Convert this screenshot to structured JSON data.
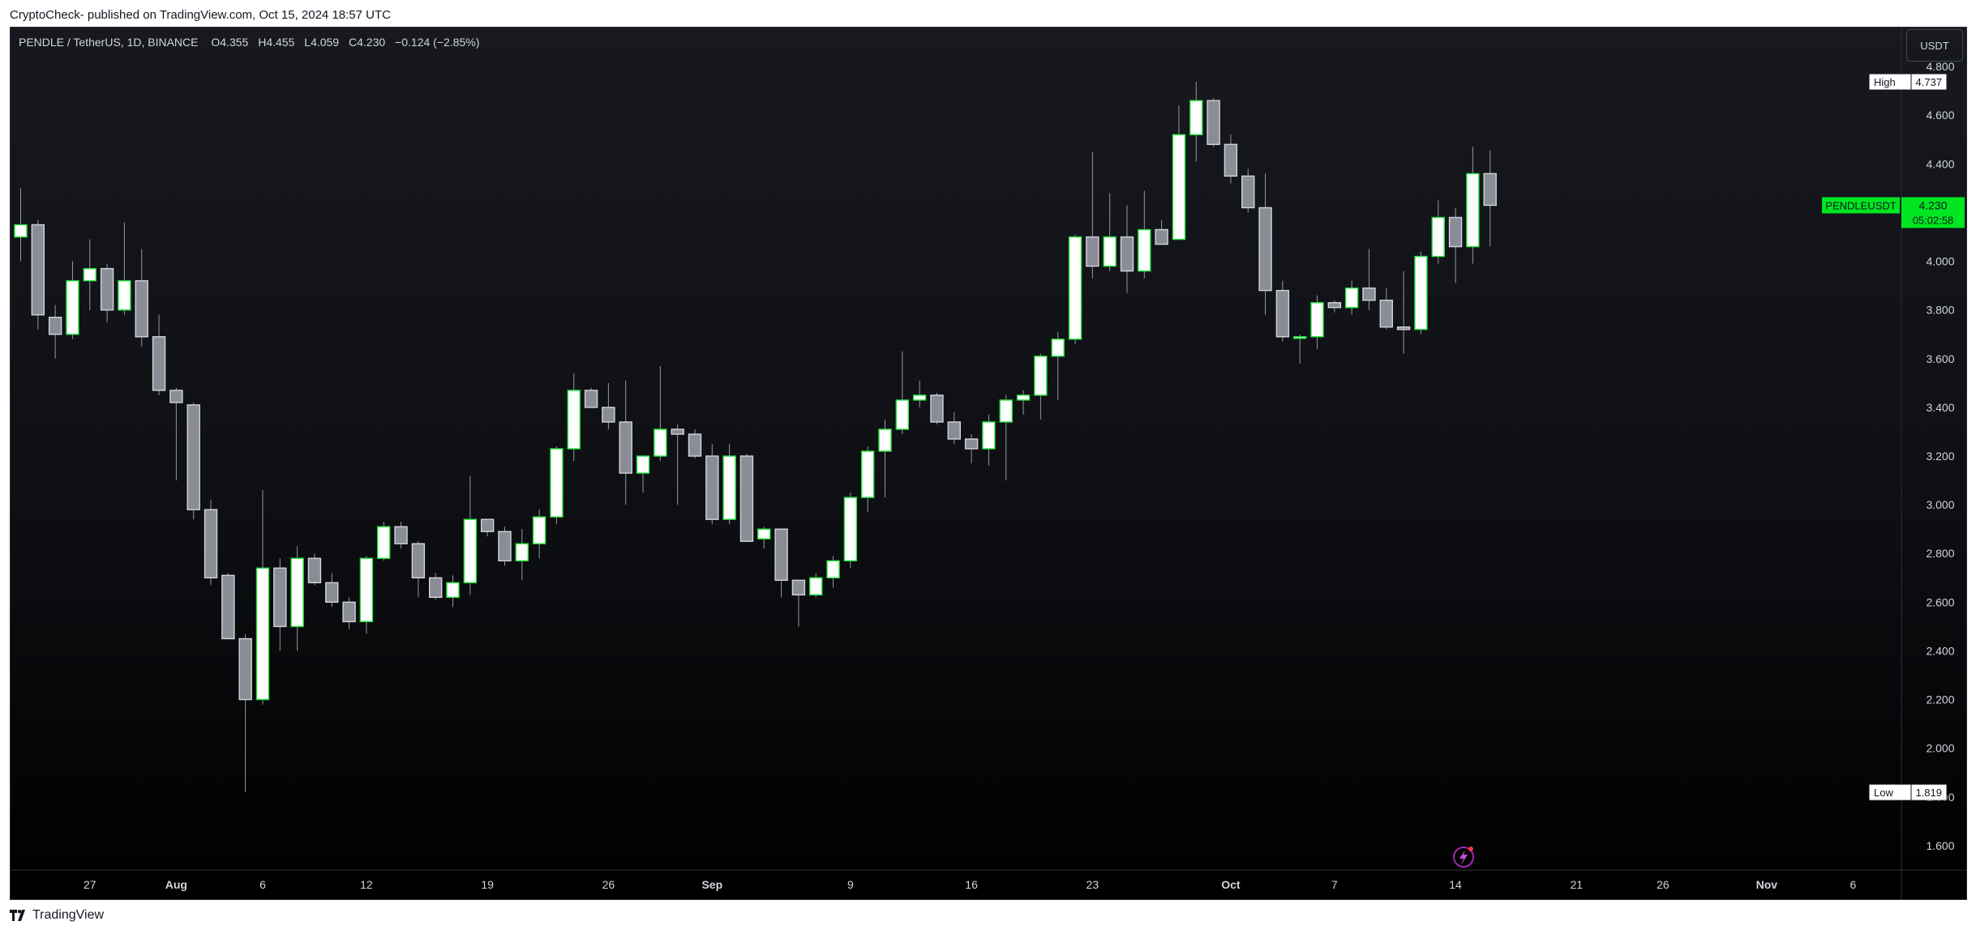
{
  "caption": "CryptoCheck- published on TradingView.com, Oct 15, 2024 18:57 UTC",
  "legend": {
    "symbol": "PENDLE / TetherUS, 1D, BINANCE",
    "open_label": "O",
    "open": "4.355",
    "high_label": "H",
    "high": "4.455",
    "low_label": "L",
    "low": "4.059",
    "close_label": "C",
    "close": "4.230",
    "change": "−0.124 (−2.85%)"
  },
  "currency": "USDT",
  "footer": {
    "brand": "TradingView"
  },
  "colors": {
    "up_border": "#22e53a",
    "up_body": "#ffffff",
    "down_border": "#d1d4dc",
    "down_body": "#8a8d96",
    "wick": "#9598a1",
    "axis_text": "#d1d4dc",
    "live_label": "#00e621"
  },
  "chart_data": {
    "type": "candlestick",
    "symbol": "PENDLEUSDT",
    "interval": "1D",
    "ylim": [
      1.5,
      4.96
    ],
    "y_ticks": [
      "4.800",
      "4.600",
      "4.400",
      "4.200",
      "4.000",
      "3.800",
      "3.600",
      "3.400",
      "3.200",
      "3.000",
      "2.800",
      "2.600",
      "2.400",
      "2.200",
      "2.000",
      "1.800",
      "1.600"
    ],
    "x_ticks": [
      {
        "label": "27",
        "index": 4
      },
      {
        "label": "Aug",
        "index": 9
      },
      {
        "label": "6",
        "index": 14
      },
      {
        "label": "12",
        "index": 20
      },
      {
        "label": "19",
        "index": 27
      },
      {
        "label": "26",
        "index": 34
      },
      {
        "label": "Sep",
        "index": 40
      },
      {
        "label": "9",
        "index": 48
      },
      {
        "label": "16",
        "index": 55
      },
      {
        "label": "23",
        "index": 62
      },
      {
        "label": "Oct",
        "index": 70
      },
      {
        "label": "7",
        "index": 76
      },
      {
        "label": "14",
        "index": 83
      },
      {
        "label": "21",
        "index": 90
      },
      {
        "label": "26",
        "index": 95
      },
      {
        "label": "Nov",
        "index": 101
      },
      {
        "label": "6",
        "index": 106
      }
    ],
    "high_marker": {
      "label": "High",
      "value": "4.737"
    },
    "low_marker": {
      "label": "Low",
      "value": "1.819"
    },
    "last_price": {
      "label": "PENDLEUSDT",
      "value": "4.230",
      "countdown": "05:02:58",
      "y": 4.23
    },
    "candles": [
      {
        "o": 4.1,
        "h": 4.3,
        "l": 4.0,
        "c": 4.15
      },
      {
        "o": 4.15,
        "h": 4.17,
        "l": 3.72,
        "c": 3.78
      },
      {
        "o": 3.77,
        "h": 3.82,
        "l": 3.6,
        "c": 3.7
      },
      {
        "o": 3.7,
        "h": 4.0,
        "l": 3.68,
        "c": 3.92
      },
      {
        "o": 3.92,
        "h": 4.09,
        "l": 3.8,
        "c": 3.97
      },
      {
        "o": 3.97,
        "h": 3.99,
        "l": 3.75,
        "c": 3.8
      },
      {
        "o": 3.8,
        "h": 4.16,
        "l": 3.78,
        "c": 3.92
      },
      {
        "o": 3.92,
        "h": 4.05,
        "l": 3.65,
        "c": 3.69
      },
      {
        "o": 3.69,
        "h": 3.78,
        "l": 3.45,
        "c": 3.47
      },
      {
        "o": 3.47,
        "h": 3.48,
        "l": 3.1,
        "c": 3.42
      },
      {
        "o": 3.41,
        "h": 3.42,
        "l": 2.94,
        "c": 2.98
      },
      {
        "o": 2.98,
        "h": 3.02,
        "l": 2.67,
        "c": 2.7
      },
      {
        "o": 2.71,
        "h": 2.72,
        "l": 2.45,
        "c": 2.45
      },
      {
        "o": 2.45,
        "h": 2.47,
        "l": 1.82,
        "c": 2.2
      },
      {
        "o": 2.2,
        "h": 3.06,
        "l": 2.18,
        "c": 2.74
      },
      {
        "o": 2.74,
        "h": 2.78,
        "l": 2.4,
        "c": 2.5
      },
      {
        "o": 2.5,
        "h": 2.83,
        "l": 2.4,
        "c": 2.78
      },
      {
        "o": 2.78,
        "h": 2.8,
        "l": 2.67,
        "c": 2.68
      },
      {
        "o": 2.68,
        "h": 2.72,
        "l": 2.58,
        "c": 2.6
      },
      {
        "o": 2.6,
        "h": 2.62,
        "l": 2.49,
        "c": 2.52
      },
      {
        "o": 2.52,
        "h": 2.79,
        "l": 2.47,
        "c": 2.78
      },
      {
        "o": 2.78,
        "h": 2.93,
        "l": 2.77,
        "c": 2.91
      },
      {
        "o": 2.91,
        "h": 2.93,
        "l": 2.82,
        "c": 2.84
      },
      {
        "o": 2.84,
        "h": 2.85,
        "l": 2.62,
        "c": 2.7
      },
      {
        "o": 2.7,
        "h": 2.72,
        "l": 2.61,
        "c": 2.62
      },
      {
        "o": 2.62,
        "h": 2.71,
        "l": 2.58,
        "c": 2.68
      },
      {
        "o": 2.68,
        "h": 3.12,
        "l": 2.63,
        "c": 2.94
      },
      {
        "o": 2.94,
        "h": 2.94,
        "l": 2.87,
        "c": 2.89
      },
      {
        "o": 2.89,
        "h": 2.91,
        "l": 2.75,
        "c": 2.77
      },
      {
        "o": 2.77,
        "h": 2.9,
        "l": 2.69,
        "c": 2.84
      },
      {
        "o": 2.84,
        "h": 2.98,
        "l": 2.78,
        "c": 2.95
      },
      {
        "o": 2.95,
        "h": 3.24,
        "l": 2.92,
        "c": 3.23
      },
      {
        "o": 3.23,
        "h": 3.54,
        "l": 3.18,
        "c": 3.47
      },
      {
        "o": 3.47,
        "h": 3.48,
        "l": 3.4,
        "c": 3.4
      },
      {
        "o": 3.4,
        "h": 3.5,
        "l": 3.31,
        "c": 3.34
      },
      {
        "o": 3.34,
        "h": 3.51,
        "l": 3.0,
        "c": 3.13
      },
      {
        "o": 3.13,
        "h": 3.2,
        "l": 3.05,
        "c": 3.2
      },
      {
        "o": 3.2,
        "h": 3.57,
        "l": 3.18,
        "c": 3.31
      },
      {
        "o": 3.31,
        "h": 3.33,
        "l": 3.0,
        "c": 3.29
      },
      {
        "o": 3.29,
        "h": 3.31,
        "l": 3.19,
        "c": 3.2
      },
      {
        "o": 3.2,
        "h": 3.25,
        "l": 2.92,
        "c": 2.94
      },
      {
        "o": 2.94,
        "h": 3.25,
        "l": 2.92,
        "c": 3.2
      },
      {
        "o": 3.2,
        "h": 3.21,
        "l": 2.85,
        "c": 2.85
      },
      {
        "o": 2.86,
        "h": 2.91,
        "l": 2.82,
        "c": 2.9
      },
      {
        "o": 2.9,
        "h": 2.9,
        "l": 2.62,
        "c": 2.69
      },
      {
        "o": 2.69,
        "h": 2.69,
        "l": 2.5,
        "c": 2.63
      },
      {
        "o": 2.63,
        "h": 2.72,
        "l": 2.62,
        "c": 2.7
      },
      {
        "o": 2.7,
        "h": 2.79,
        "l": 2.66,
        "c": 2.77
      },
      {
        "o": 2.77,
        "h": 3.05,
        "l": 2.74,
        "c": 3.03
      },
      {
        "o": 3.03,
        "h": 3.24,
        "l": 2.97,
        "c": 3.22
      },
      {
        "o": 3.22,
        "h": 3.35,
        "l": 3.03,
        "c": 3.31
      },
      {
        "o": 3.31,
        "h": 3.63,
        "l": 3.29,
        "c": 3.43
      },
      {
        "o": 3.43,
        "h": 3.51,
        "l": 3.4,
        "c": 3.45
      },
      {
        "o": 3.45,
        "h": 3.46,
        "l": 3.33,
        "c": 3.34
      },
      {
        "o": 3.34,
        "h": 3.38,
        "l": 3.25,
        "c": 3.27
      },
      {
        "o": 3.27,
        "h": 3.29,
        "l": 3.17,
        "c": 3.23
      },
      {
        "o": 3.23,
        "h": 3.37,
        "l": 3.16,
        "c": 3.34
      },
      {
        "o": 3.34,
        "h": 3.45,
        "l": 3.1,
        "c": 3.43
      },
      {
        "o": 3.43,
        "h": 3.47,
        "l": 3.37,
        "c": 3.45
      },
      {
        "o": 3.45,
        "h": 3.62,
        "l": 3.35,
        "c": 3.61
      },
      {
        "o": 3.61,
        "h": 3.71,
        "l": 3.43,
        "c": 3.68
      },
      {
        "o": 3.68,
        "h": 4.11,
        "l": 3.66,
        "c": 4.1
      },
      {
        "o": 4.1,
        "h": 4.45,
        "l": 3.93,
        "c": 3.98
      },
      {
        "o": 3.98,
        "h": 4.28,
        "l": 3.96,
        "c": 4.1
      },
      {
        "o": 4.1,
        "h": 4.23,
        "l": 3.87,
        "c": 3.96
      },
      {
        "o": 3.96,
        "h": 4.29,
        "l": 3.93,
        "c": 4.13
      },
      {
        "o": 4.13,
        "h": 4.17,
        "l": 4.07,
        "c": 4.07
      },
      {
        "o": 4.09,
        "h": 4.64,
        "l": 4.09,
        "c": 4.52
      },
      {
        "o": 4.52,
        "h": 4.737,
        "l": 4.41,
        "c": 4.66
      },
      {
        "o": 4.66,
        "h": 4.67,
        "l": 4.47,
        "c": 4.48
      },
      {
        "o": 4.48,
        "h": 4.52,
        "l": 4.32,
        "c": 4.35
      },
      {
        "o": 4.35,
        "h": 4.38,
        "l": 4.2,
        "c": 4.22
      },
      {
        "o": 4.22,
        "h": 4.36,
        "l": 3.78,
        "c": 3.88
      },
      {
        "o": 3.88,
        "h": 3.92,
        "l": 3.67,
        "c": 3.69
      },
      {
        "o": 3.69,
        "h": 3.7,
        "l": 3.58,
        "c": 3.69
      },
      {
        "o": 3.69,
        "h": 3.86,
        "l": 3.64,
        "c": 3.83
      },
      {
        "o": 3.83,
        "h": 3.84,
        "l": 3.79,
        "c": 3.81
      },
      {
        "o": 3.81,
        "h": 3.92,
        "l": 3.78,
        "c": 3.89
      },
      {
        "o": 3.89,
        "h": 4.05,
        "l": 3.8,
        "c": 3.84
      },
      {
        "o": 3.84,
        "h": 3.89,
        "l": 3.72,
        "c": 3.73
      },
      {
        "o": 3.73,
        "h": 3.96,
        "l": 3.62,
        "c": 3.72
      },
      {
        "o": 3.72,
        "h": 4.04,
        "l": 3.7,
        "c": 4.02
      },
      {
        "o": 4.02,
        "h": 4.25,
        "l": 3.99,
        "c": 4.18
      },
      {
        "o": 4.18,
        "h": 4.22,
        "l": 3.91,
        "c": 4.06
      },
      {
        "o": 4.06,
        "h": 4.47,
        "l": 3.99,
        "c": 4.36
      },
      {
        "o": 4.36,
        "h": 4.455,
        "l": 4.06,
        "c": 4.23
      }
    ]
  }
}
